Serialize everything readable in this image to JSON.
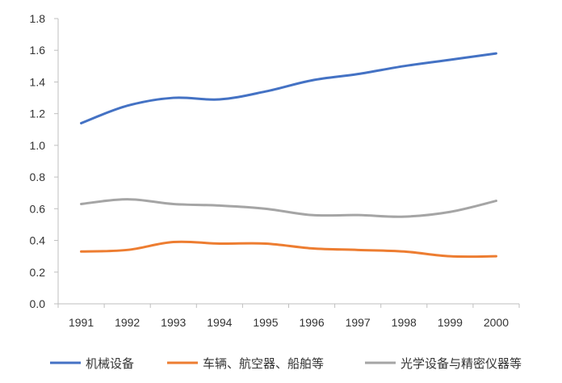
{
  "chart_data": {
    "type": "line",
    "title": "",
    "xlabel": "",
    "ylabel": "",
    "categories": [
      "1991",
      "1992",
      "1993",
      "1994",
      "1995",
      "1996",
      "1997",
      "1998",
      "1999",
      "2000"
    ],
    "ylim": [
      0.0,
      1.8
    ],
    "yticks": [
      "0.0",
      "0.2",
      "0.4",
      "0.6",
      "0.8",
      "1.0",
      "1.2",
      "1.4",
      "1.6",
      "1.8"
    ],
    "grid": false,
    "legend_position": "bottom",
    "series": [
      {
        "name": "机械设备",
        "color": "#4472C4",
        "values": [
          1.14,
          1.25,
          1.3,
          1.29,
          1.34,
          1.41,
          1.45,
          1.5,
          1.54,
          1.58
        ]
      },
      {
        "name": "车辆、航空器、船舶等",
        "color": "#ED7D31",
        "values": [
          0.33,
          0.34,
          0.39,
          0.38,
          0.38,
          0.35,
          0.34,
          0.33,
          0.3,
          0.3
        ]
      },
      {
        "name": "光学设备与精密仪器等",
        "color": "#A5A5A5",
        "values": [
          0.63,
          0.66,
          0.63,
          0.62,
          0.6,
          0.56,
          0.56,
          0.55,
          0.58,
          0.65
        ]
      }
    ]
  }
}
